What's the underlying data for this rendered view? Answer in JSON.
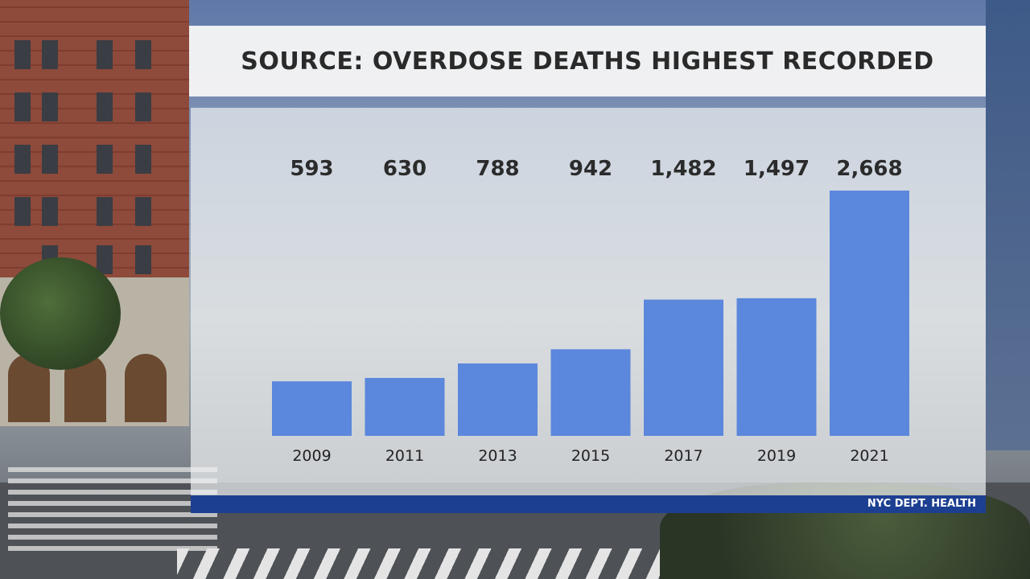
{
  "title": "SOURCE: OVERDOSE DEATHS HIGHEST RECORDED",
  "source": "NYC DEPT. HEALTH",
  "colors": {
    "bar": "#5b87dc",
    "strip": "#1d3f91"
  },
  "chart_data": {
    "type": "bar",
    "categories": [
      "2009",
      "2011",
      "2013",
      "2015",
      "2017",
      "2019",
      "2021"
    ],
    "values": [
      593,
      630,
      788,
      942,
      1482,
      1497,
      2668
    ],
    "value_labels": [
      "593",
      "630",
      "788",
      "942",
      "1,482",
      "1,497",
      "2,668"
    ],
    "title": "SOURCE: OVERDOSE DEATHS HIGHEST RECORDED",
    "xlabel": "",
    "ylabel": "",
    "ylim": [
      0,
      2668
    ],
    "grid": false
  }
}
